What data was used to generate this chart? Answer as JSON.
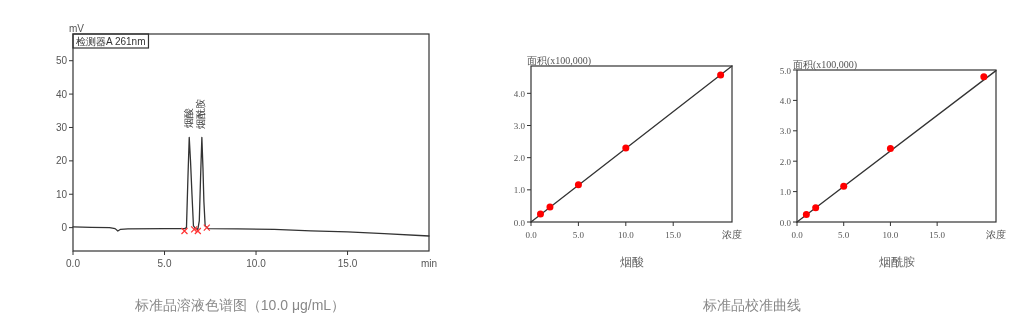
{
  "chart_data": [
    {
      "type": "line",
      "ylabel": "mV",
      "xlabel": "min",
      "legend": "top left",
      "grid": false,
      "xlim": [
        0,
        19.45
      ],
      "ylim": [
        -7,
        58
      ],
      "xticks": [
        {
          "value": 0,
          "label": "0.0"
        },
        {
          "value": 5,
          "label": "5.0"
        },
        {
          "value": 10,
          "label": "10.0"
        },
        {
          "value": 15,
          "label": "15.0"
        }
      ],
      "yticks": [
        0,
        10,
        20,
        30,
        40,
        50
      ],
      "annotations": [
        {
          "text": "烟酸",
          "x": 6.35,
          "y": 27
        },
        {
          "text": "烟酰胺",
          "x": 7.04,
          "y": 27
        },
        "标准品溶液色谱图（10.0 μg/mL）"
      ],
      "series": [
        {
          "name": "检测器A 261nm",
          "color": "#333333",
          "x": [
            0,
            1,
            2,
            2.3,
            2.45,
            2.6,
            3,
            5,
            6.1,
            6.2,
            6.28,
            6.35,
            6.42,
            6.5,
            6.58,
            6.7,
            6.82,
            6.9,
            6.97,
            7.04,
            7.1,
            7.15,
            7.22,
            7.4,
            9,
            11,
            13,
            15,
            17,
            19.45
          ],
          "values": [
            0.2,
            0.1,
            0,
            -0.3,
            -1,
            -0.5,
            -0.4,
            -0.3,
            -0.3,
            0,
            15,
            27,
            20,
            10,
            0.5,
            -0.3,
            -0.5,
            2,
            15,
            27,
            18,
            8,
            0.5,
            -0.3,
            -0.4,
            -0.5,
            -1.0,
            -1.3,
            -1.8,
            -2.5
          ]
        },
        {
          "type": "scatter",
          "color": "#ff3333",
          "marker": "cross",
          "x": [
            6.09,
            6.62,
            6.82,
            7.31
          ],
          "values": [
            -1,
            -0.5,
            -1,
            0
          ]
        }
      ]
    },
    {
      "type": "scatter",
      "title": "烟酸",
      "ylabel": "面积(x100,000)",
      "xlabel": "浓度",
      "grid": false,
      "xlim": [
        0,
        21.2
      ],
      "ylim": [
        0,
        4.85
      ],
      "xticks": [
        {
          "value": 0,
          "label": "0.0"
        },
        {
          "value": 5,
          "label": "5.0"
        },
        {
          "value": 10,
          "label": "10.0"
        },
        {
          "value": 15,
          "label": "15.0"
        }
      ],
      "yticks": [
        {
          "value": 0,
          "label": "0.0"
        },
        {
          "value": 1,
          "label": "1.0"
        },
        {
          "value": 2,
          "label": "2.0"
        },
        {
          "value": 3,
          "label": "3.0"
        },
        {
          "value": 4,
          "label": "4.0"
        }
      ],
      "annotations": [
        "标准品校准曲线"
      ],
      "series": [
        {
          "type": "line",
          "color": "#333333",
          "x": [
            0,
            21.2
          ],
          "values": [
            0,
            4.85
          ]
        },
        {
          "color": "#ff0000",
          "marker": "circle",
          "x": [
            1,
            2,
            5,
            10,
            20
          ],
          "values": [
            0.25,
            0.47,
            1.16,
            2.3,
            4.57
          ]
        }
      ]
    },
    {
      "type": "scatter",
      "title": "烟酰胺",
      "ylabel": "面积(x100,000)",
      "xlabel": "浓度",
      "grid": false,
      "xlim": [
        0,
        21.3
      ],
      "ylim": [
        0,
        5
      ],
      "xticks": [
        {
          "value": 0,
          "label": "0.0"
        },
        {
          "value": 5,
          "label": "5.0"
        },
        {
          "value": 10,
          "label": "10.0"
        },
        {
          "value": 15,
          "label": "15.0"
        }
      ],
      "yticks": [
        {
          "value": 0,
          "label": "0.0"
        },
        {
          "value": 1,
          "label": "1.0"
        },
        {
          "value": 2,
          "label": "2.0"
        },
        {
          "value": 3,
          "label": "3.0"
        },
        {
          "value": 4,
          "label": "4.0"
        },
        {
          "value": 5,
          "label": "5.0"
        }
      ],
      "series": [
        {
          "type": "line",
          "color": "#333333",
          "x": [
            0,
            21.3
          ],
          "values": [
            0,
            4.98
          ]
        },
        {
          "color": "#ff0000",
          "marker": "circle",
          "x": [
            1,
            2,
            5,
            10,
            20
          ],
          "values": [
            0.25,
            0.47,
            1.18,
            2.42,
            4.78
          ]
        }
      ]
    }
  ]
}
